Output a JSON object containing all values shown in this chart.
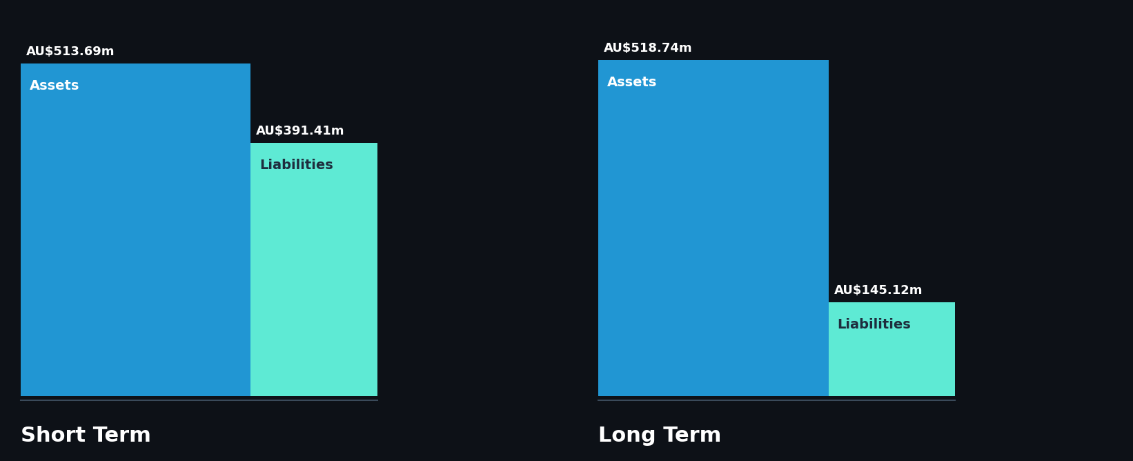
{
  "background_color": "#0d1117",
  "short_term": {
    "assets_value": 513.69,
    "liabilities_value": 391.41,
    "assets_label": "AU$513.69m",
    "liabilities_label": "AU$391.41m",
    "assets_text": "Assets",
    "liabilities_text": "Liabilities",
    "title": "Short Term"
  },
  "long_term": {
    "assets_value": 518.74,
    "liabilities_value": 145.12,
    "assets_label": "AU$518.74m",
    "liabilities_label": "AU$145.12m",
    "assets_text": "Assets",
    "liabilities_text": "Liabilities",
    "title": "Long Term"
  },
  "assets_color": "#2196d3",
  "liabilities_color": "#5eead4",
  "label_color_white": "#ffffff",
  "label_color_dark": "#1e2d3d",
  "separator_color": "#3a4a5a",
  "title_fontsize": 22,
  "value_label_fontsize": 13,
  "inner_label_fontsize": 14
}
